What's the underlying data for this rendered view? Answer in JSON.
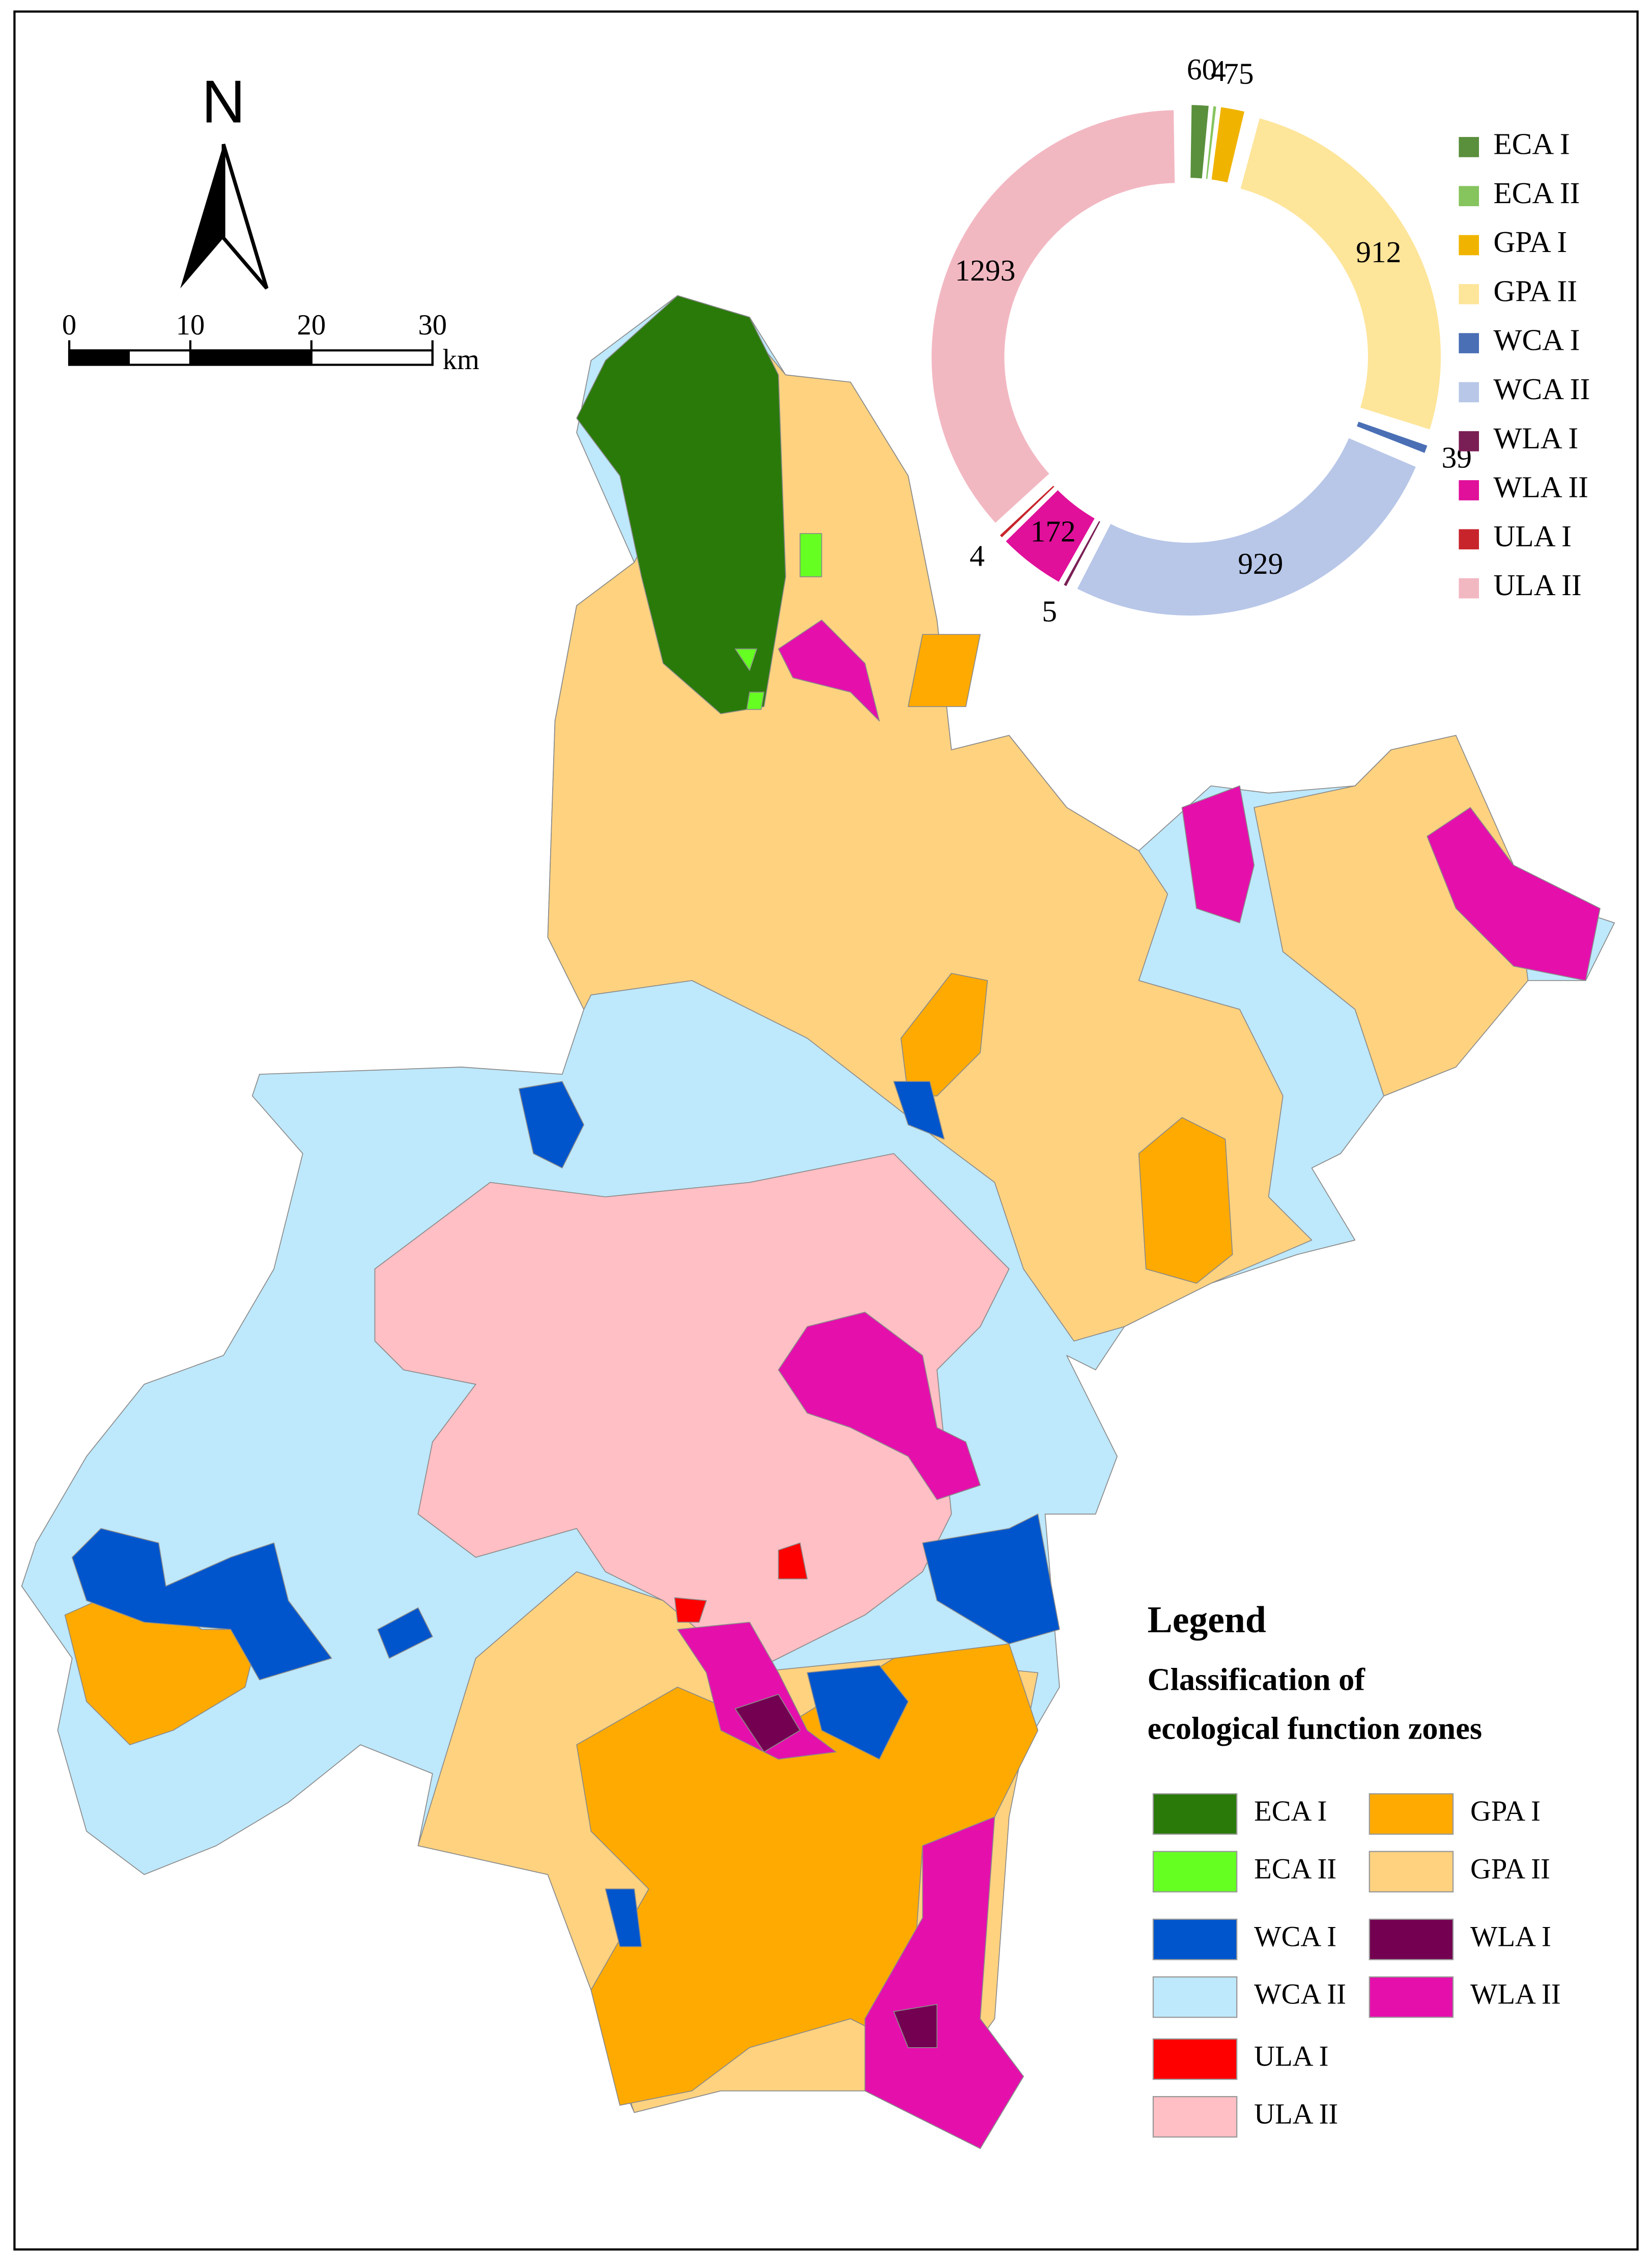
{
  "map": {
    "north_label": "N",
    "scale_bar": {
      "ticks": [
        0,
        10,
        20,
        30
      ],
      "unit": "km"
    },
    "legend": {
      "title": "Legend",
      "subtitle_lines": [
        "Classification of",
        "ecological function zones"
      ],
      "items": [
        {
          "label": "ECA I",
          "color": "#2a7a0a"
        },
        {
          "label": "ECA II",
          "color": "#66ff22"
        },
        {
          "label": "GPA I",
          "color": "#ffaa00"
        },
        {
          "label": "GPA II",
          "color": "#ffd27f"
        },
        {
          "label": "WCA I",
          "color": "#0055cc"
        },
        {
          "label": "WCA II",
          "color": "#bee8fb"
        },
        {
          "label": "WLA I",
          "color": "#730050"
        },
        {
          "label": "WLA II",
          "color": "#e50fac"
        },
        {
          "label": "ULA I",
          "color": "#ff0000"
        },
        {
          "label": "ULA II",
          "color": "#ffbfc4"
        }
      ]
    }
  },
  "chart_data": {
    "type": "donut",
    "categories": [
      "ECA I",
      "ECA II",
      "GPA I",
      "GPA II",
      "WCA I",
      "WCA II",
      "WLA I",
      "WLA II",
      "ULA I",
      "ULA II"
    ],
    "values": [
      60,
      4,
      75,
      912,
      39,
      929,
      5,
      172,
      4,
      1293
    ],
    "colors": [
      "#5a8f3c",
      "#86c45e",
      "#f0b400",
      "#fde59a",
      "#4a6fb5",
      "#b8c7e8",
      "#7a1f55",
      "#e0109a",
      "#c8242c",
      "#f2b8c2"
    ]
  }
}
